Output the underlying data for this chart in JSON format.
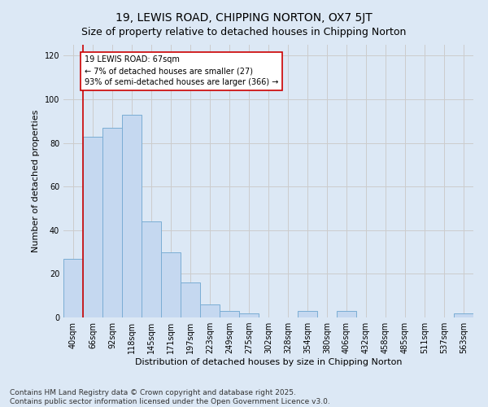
{
  "title": "19, LEWIS ROAD, CHIPPING NORTON, OX7 5JT",
  "subtitle": "Size of property relative to detached houses in Chipping Norton",
  "xlabel": "Distribution of detached houses by size in Chipping Norton",
  "ylabel": "Number of detached properties",
  "categories": [
    "40sqm",
    "66sqm",
    "92sqm",
    "118sqm",
    "145sqm",
    "171sqm",
    "197sqm",
    "223sqm",
    "249sqm",
    "275sqm",
    "302sqm",
    "328sqm",
    "354sqm",
    "380sqm",
    "406sqm",
    "432sqm",
    "458sqm",
    "485sqm",
    "511sqm",
    "537sqm",
    "563sqm"
  ],
  "values": [
    27,
    83,
    87,
    93,
    44,
    30,
    16,
    6,
    3,
    2,
    0,
    0,
    3,
    0,
    3,
    0,
    0,
    0,
    0,
    0,
    2
  ],
  "bar_color": "#c5d8f0",
  "bar_edge_color": "#7aadd4",
  "annotation_text": "19 LEWIS ROAD: 67sqm\n← 7% of detached houses are smaller (27)\n93% of semi-detached houses are larger (366) →",
  "annotation_box_color": "#ffffff",
  "annotation_box_edge_color": "#cc0000",
  "vline_color": "#cc0000",
  "vline_x": 0.5,
  "ylim": [
    0,
    125
  ],
  "yticks": [
    0,
    20,
    40,
    60,
    80,
    100,
    120
  ],
  "grid_color": "#cccccc",
  "bg_color": "#dce8f5",
  "footer_text": "Contains HM Land Registry data © Crown copyright and database right 2025.\nContains public sector information licensed under the Open Government Licence v3.0.",
  "title_fontsize": 10,
  "subtitle_fontsize": 9,
  "label_fontsize": 8,
  "tick_fontsize": 7,
  "footer_fontsize": 6.5,
  "annot_fontsize": 7
}
